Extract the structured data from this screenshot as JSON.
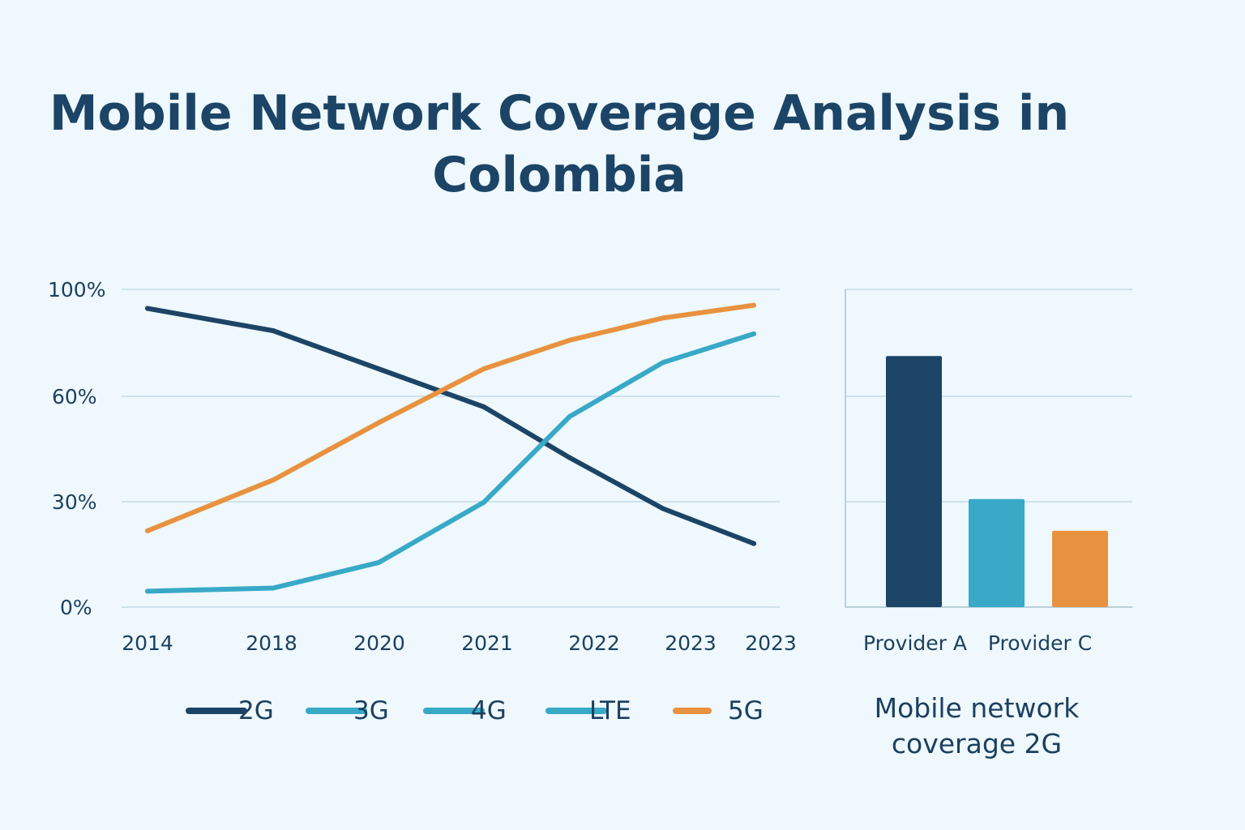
{
  "title": [
    "Mobile Network Coverage Analysis in",
    "Colombia"
  ],
  "chart_data": [
    {
      "type": "line",
      "title": "",
      "xlabel": "",
      "ylabel": "",
      "x": [
        "2014",
        "2018",
        "2020",
        "2021",
        "2022",
        "2023",
        "2023"
      ],
      "y_ticks": [
        "100%",
        "60%",
        "30%",
        "0%"
      ],
      "ylim": [
        0,
        100
      ],
      "grid": true,
      "legend_position": "bottom",
      "series": [
        {
          "name": "2G",
          "color": "#1c4466",
          "values": [
            94,
            87,
            75,
            63,
            47,
            31,
            20
          ]
        },
        {
          "name": "3G",
          "color": "#38a9c6",
          "values": [
            5,
            6,
            14,
            33,
            60,
            77,
            86
          ]
        },
        {
          "name": "5G",
          "color": "#e8923f",
          "values": [
            24,
            40,
            58,
            75,
            84,
            91,
            95
          ]
        }
      ],
      "legend": [
        {
          "label": "2G",
          "color": "#1c4466"
        },
        {
          "label": "3G",
          "color": "#38a9c6"
        },
        {
          "label": "4G",
          "color": "#38a9c6"
        },
        {
          "label": "LTE",
          "color": "#38a9c6"
        },
        {
          "label": "5G",
          "color": "#e8923f"
        }
      ]
    },
    {
      "type": "bar",
      "title": "",
      "caption": [
        "Mobile network",
        "coverage 2G"
      ],
      "ylim": [
        0,
        100
      ],
      "grid": true,
      "tick_labels": [
        "Provider A",
        "Provider C"
      ],
      "bars": [
        {
          "value": 79,
          "color": "#1c4466"
        },
        {
          "value": 34,
          "color": "#38a9c6"
        },
        {
          "value": 24,
          "color": "#e8923f"
        }
      ]
    }
  ]
}
